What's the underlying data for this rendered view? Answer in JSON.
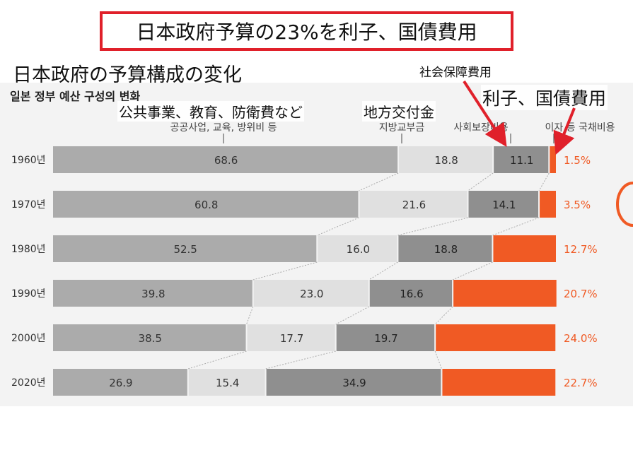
{
  "headline": "日本政府予算の23%を利子、国債費用",
  "subtitle_jp": "日本政府の予算構成の変化",
  "annotations": {
    "social_security_jp": "社会保障費用",
    "interest_jp": "利子、国債費用",
    "public_jp": "公共事業、教育、防衛費など",
    "local_jp": "地方交付金"
  },
  "colors": {
    "public": "#ababab",
    "local": "#e0e0e0",
    "social": "#8f8f8f",
    "interest": "#f05a24",
    "background": "#f3f3f3",
    "headline_border": "#e0202a"
  },
  "chart_data": {
    "type": "bar",
    "stacked": true,
    "orientation": "horizontal",
    "title": "일본 정부 예산 구성의 변화",
    "categories": [
      "1960년",
      "1970년",
      "1980년",
      "1990년",
      "2000년",
      "2020년"
    ],
    "series": [
      {
        "name": "공공사업, 교육, 방위비 등",
        "values": [
          68.6,
          60.8,
          52.5,
          39.8,
          38.5,
          26.9
        ]
      },
      {
        "name": "지방교부금",
        "values": [
          18.8,
          21.6,
          16.0,
          23.0,
          17.7,
          15.4
        ]
      },
      {
        "name": "사회보장비용",
        "values": [
          11.1,
          14.1,
          18.8,
          16.6,
          19.7,
          34.9
        ]
      },
      {
        "name": "이자 등 국채비용",
        "values": [
          1.5,
          3.5,
          12.7,
          20.7,
          24.0,
          22.7
        ]
      }
    ],
    "data_labels_last": [
      "1.5%",
      "3.5%",
      "12.7%",
      "20.7%",
      "24.0%",
      "22.7%"
    ],
    "legend": "top"
  }
}
